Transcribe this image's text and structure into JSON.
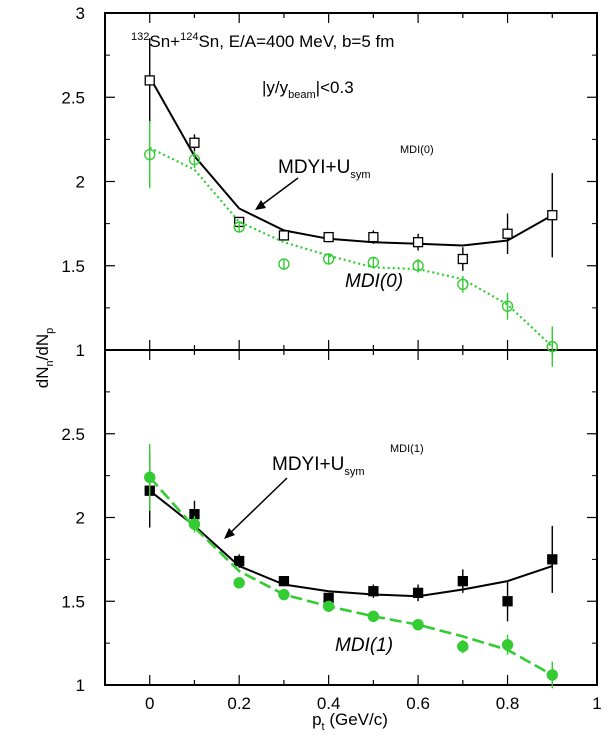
{
  "chart_data": [
    {
      "type": "line",
      "panel": "top",
      "xlim": [
        -0.1,
        1.0
      ],
      "ylim": [
        1,
        3
      ],
      "yticks": [
        "1",
        "1.5",
        "2",
        "2.5",
        "3"
      ],
      "reaction": {
        "sup1": "132",
        "t1": "Sn+",
        "sup2": "124",
        "t2": "Sn, E/A=400 MeV, b=5 fm"
      },
      "cut": {
        "pre": "|y/y",
        "sub": "beam",
        "post": "|<0.3"
      },
      "series": [
        {
          "name": "MDYI+U",
          "name_sub": "sym",
          "name_sup": "MDI(0)",
          "color": "#000000",
          "marker": "open-square",
          "line": "solid",
          "points": [
            {
              "x": 0.0,
              "y": 2.6,
              "err": 0.25
            },
            {
              "x": 0.1,
              "y": 2.23,
              "err": 0.05
            },
            {
              "x": 0.2,
              "y": 1.76,
              "err": 0.03
            },
            {
              "x": 0.3,
              "y": 1.68,
              "err": 0.03
            },
            {
              "x": 0.4,
              "y": 1.67,
              "err": 0.03
            },
            {
              "x": 0.5,
              "y": 1.67,
              "err": 0.04
            },
            {
              "x": 0.6,
              "y": 1.64,
              "err": 0.05
            },
            {
              "x": 0.7,
              "y": 1.54,
              "err": 0.07
            },
            {
              "x": 0.8,
              "y": 1.69,
              "err": 0.12
            },
            {
              "x": 0.9,
              "y": 1.8,
              "err": 0.25
            }
          ],
          "curve": [
            [
              0.0,
              2.62
            ],
            [
              0.1,
              2.15
            ],
            [
              0.2,
              1.84
            ],
            [
              0.3,
              1.71
            ],
            [
              0.4,
              1.66
            ],
            [
              0.5,
              1.64
            ],
            [
              0.6,
              1.63
            ],
            [
              0.7,
              1.62
            ],
            [
              0.8,
              1.65
            ],
            [
              0.9,
              1.8
            ]
          ]
        },
        {
          "name": "MDI(0)",
          "color": "#33cc33",
          "marker": "open-circle",
          "line": "dotted",
          "points": [
            {
              "x": 0.0,
              "y": 2.16,
              "err": 0.2
            },
            {
              "x": 0.1,
              "y": 2.13,
              "err": 0.05
            },
            {
              "x": 0.2,
              "y": 1.73,
              "err": 0.03
            },
            {
              "x": 0.3,
              "y": 1.51,
              "err": 0.03
            },
            {
              "x": 0.4,
              "y": 1.54,
              "err": 0.03
            },
            {
              "x": 0.5,
              "y": 1.52,
              "err": 0.03
            },
            {
              "x": 0.6,
              "y": 1.5,
              "err": 0.04
            },
            {
              "x": 0.7,
              "y": 1.39,
              "err": 0.05
            },
            {
              "x": 0.8,
              "y": 1.26,
              "err": 0.08
            },
            {
              "x": 0.9,
              "y": 1.02,
              "err": 0.12
            }
          ],
          "curve": [
            [
              0.0,
              2.2
            ],
            [
              0.1,
              2.07
            ],
            [
              0.2,
              1.76
            ],
            [
              0.3,
              1.64
            ],
            [
              0.4,
              1.56
            ],
            [
              0.5,
              1.49
            ],
            [
              0.6,
              1.48
            ],
            [
              0.7,
              1.42
            ],
            [
              0.8,
              1.27
            ],
            [
              0.9,
              1.02
            ]
          ]
        }
      ]
    },
    {
      "type": "line",
      "panel": "bottom",
      "xlim": [
        -0.1,
        1.0
      ],
      "ylim": [
        1,
        3
      ],
      "yticks": [
        "1",
        "1.5",
        "2",
        "2.5"
      ],
      "xticks": [
        "0",
        "0.2",
        "0.4",
        "0.6",
        "0.8",
        "1"
      ],
      "series": [
        {
          "name": "MDYI+U",
          "name_sub": "sym",
          "name_sup": "MDI(1)",
          "color": "#000000",
          "marker": "filled-square",
          "line": "solid",
          "points": [
            {
              "x": 0.0,
              "y": 2.16,
              "err": 0.22
            },
            {
              "x": 0.1,
              "y": 2.02,
              "err": 0.08
            },
            {
              "x": 0.2,
              "y": 1.74,
              "err": 0.04
            },
            {
              "x": 0.3,
              "y": 1.62,
              "err": 0.03
            },
            {
              "x": 0.4,
              "y": 1.52,
              "err": 0.03
            },
            {
              "x": 0.5,
              "y": 1.56,
              "err": 0.04
            },
            {
              "x": 0.6,
              "y": 1.55,
              "err": 0.05
            },
            {
              "x": 0.7,
              "y": 1.62,
              "err": 0.07
            },
            {
              "x": 0.8,
              "y": 1.5,
              "err": 0.12
            },
            {
              "x": 0.9,
              "y": 1.75,
              "err": 0.2
            }
          ],
          "curve": [
            [
              0.0,
              2.16
            ],
            [
              0.1,
              1.95
            ],
            [
              0.2,
              1.71
            ],
            [
              0.3,
              1.6
            ],
            [
              0.4,
              1.56
            ],
            [
              0.5,
              1.54
            ],
            [
              0.6,
              1.53
            ],
            [
              0.7,
              1.57
            ],
            [
              0.8,
              1.62
            ],
            [
              0.9,
              1.71
            ]
          ]
        },
        {
          "name": "MDI(1)",
          "color": "#33cc33",
          "marker": "filled-circle",
          "line": "dashed",
          "points": [
            {
              "x": 0.0,
              "y": 2.24,
              "err": 0.2
            },
            {
              "x": 0.1,
              "y": 1.96,
              "err": 0.05
            },
            {
              "x": 0.2,
              "y": 1.61,
              "err": 0.03
            },
            {
              "x": 0.3,
              "y": 1.54,
              "err": 0.02
            },
            {
              "x": 0.4,
              "y": 1.47,
              "err": 0.02
            },
            {
              "x": 0.5,
              "y": 1.41,
              "err": 0.02
            },
            {
              "x": 0.6,
              "y": 1.36,
              "err": 0.03
            },
            {
              "x": 0.7,
              "y": 1.23,
              "err": 0.04
            },
            {
              "x": 0.8,
              "y": 1.24,
              "err": 0.06
            },
            {
              "x": 0.9,
              "y": 1.06,
              "err": 0.08
            }
          ],
          "curve": [
            [
              0.0,
              2.24
            ],
            [
              0.1,
              1.94
            ],
            [
              0.2,
              1.68
            ],
            [
              0.3,
              1.54
            ],
            [
              0.4,
              1.47
            ],
            [
              0.5,
              1.41
            ],
            [
              0.6,
              1.36
            ],
            [
              0.7,
              1.29
            ],
            [
              0.8,
              1.21
            ],
            [
              0.9,
              1.06
            ]
          ]
        }
      ]
    }
  ],
  "axes": {
    "ylabel": {
      "a": "dN",
      "asub": "n",
      "b": "/dN",
      "bsub": "p"
    },
    "xlabel": {
      "a": "p",
      "asub": "t",
      "b": " (GeV/c)"
    }
  }
}
